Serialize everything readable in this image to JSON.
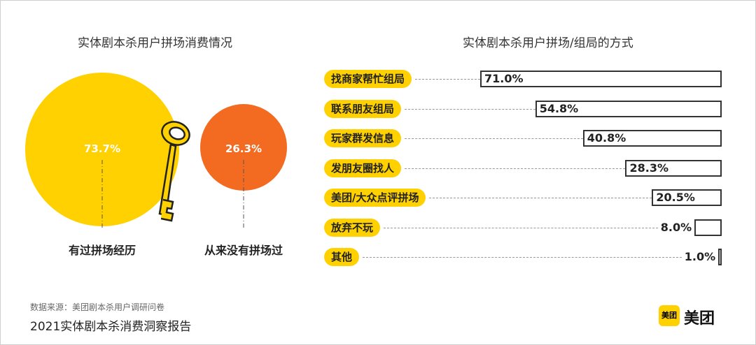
{
  "left_chart": {
    "title": "实体剧本杀用户拼场消费情况",
    "type": "pie",
    "slices": [
      {
        "label": "有过拼场经历",
        "value": 73.7,
        "display": "73.7%",
        "color": "#FFD100"
      },
      {
        "label": "从来没有拼场过",
        "value": 26.3,
        "display": "26.3%",
        "color": "#F36A21"
      }
    ]
  },
  "chart_data": {
    "type": "bar",
    "title": "实体剧本杀用户拼场/组局的方式",
    "categories": [
      "找商家帮忙组局",
      "联系朋友组局",
      "玩家群发信息",
      "发朋友圈找人",
      "美团/大众点评拼场",
      "放弃不玩",
      "其他"
    ],
    "values": [
      71.0,
      54.8,
      40.8,
      28.3,
      20.5,
      8.0,
      1.0
    ],
    "labels": [
      "71.0%",
      "54.8%",
      "40.8%",
      "28.3%",
      "20.5%",
      "8.0%",
      "1.0%"
    ],
    "badge_color": "#FFD100"
  },
  "footer": {
    "source": "数据来源：美团剧本杀用户调研问卷",
    "report": "2021实体剧本杀消费洞察报告",
    "logo_badge": "美团",
    "logo_text": "美团"
  }
}
